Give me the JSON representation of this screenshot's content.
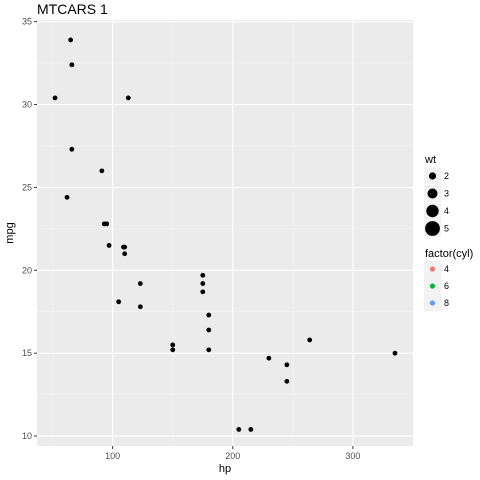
{
  "chart_data": {
    "type": "scatter",
    "title": "MTCARS 1",
    "xlabel": "hp",
    "ylabel": "mpg",
    "xlim": [
      37,
      350
    ],
    "ylim": [
      9.4,
      35.1
    ],
    "x_ticks": [
      100,
      200,
      300
    ],
    "y_ticks": [
      10,
      15,
      20,
      25,
      30,
      35
    ],
    "grid": true,
    "legend_position": "right",
    "point_color": "#000000",
    "panel_background": "#EBEBEB",
    "size_legend": {
      "title": "wt",
      "values": [
        2,
        3,
        4,
        5
      ]
    },
    "color_legend": {
      "title": "factor(cyl)",
      "entries": [
        {
          "label": "4",
          "color": "#F8766D"
        },
        {
          "label": "6",
          "color": "#00BA38"
        },
        {
          "label": "8",
          "color": "#619CFF"
        }
      ]
    },
    "points": [
      {
        "x": 52,
        "y": 30.4
      },
      {
        "x": 65,
        "y": 33.9
      },
      {
        "x": 66,
        "y": 32.4
      },
      {
        "x": 66,
        "y": 27.3
      },
      {
        "x": 62,
        "y": 24.4
      },
      {
        "x": 91,
        "y": 26.0
      },
      {
        "x": 93,
        "y": 22.8
      },
      {
        "x": 95,
        "y": 22.8
      },
      {
        "x": 97,
        "y": 21.5
      },
      {
        "x": 105,
        "y": 18.1
      },
      {
        "x": 109,
        "y": 21.4
      },
      {
        "x": 110,
        "y": 21.4
      },
      {
        "x": 110,
        "y": 21.0
      },
      {
        "x": 113,
        "y": 30.4
      },
      {
        "x": 123,
        "y": 19.2
      },
      {
        "x": 123,
        "y": 17.8
      },
      {
        "x": 150,
        "y": 15.5
      },
      {
        "x": 150,
        "y": 15.2
      },
      {
        "x": 175,
        "y": 19.7
      },
      {
        "x": 175,
        "y": 19.2
      },
      {
        "x": 175,
        "y": 18.7
      },
      {
        "x": 180,
        "y": 17.3
      },
      {
        "x": 180,
        "y": 16.4
      },
      {
        "x": 180,
        "y": 15.2
      },
      {
        "x": 205,
        "y": 10.4
      },
      {
        "x": 215,
        "y": 10.4
      },
      {
        "x": 230,
        "y": 14.7
      },
      {
        "x": 245,
        "y": 14.3
      },
      {
        "x": 245,
        "y": 13.3
      },
      {
        "x": 264,
        "y": 15.8
      },
      {
        "x": 335,
        "y": 15.0
      }
    ]
  }
}
